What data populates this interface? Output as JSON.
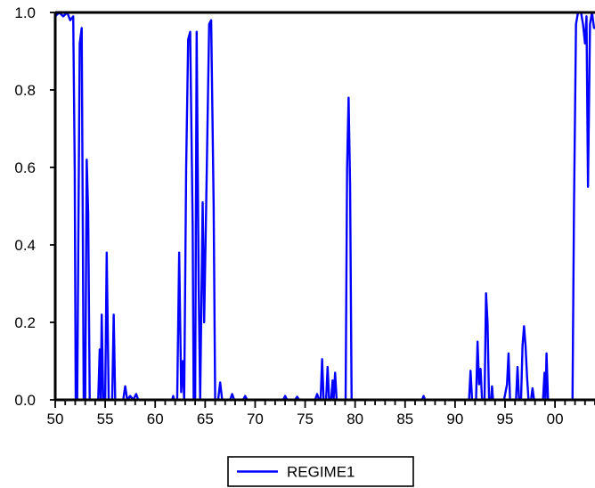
{
  "chart_data": {
    "type": "line",
    "title": "",
    "xlabel": "",
    "ylabel": "",
    "xlim": [
      1950,
      2004
    ],
    "ylim": [
      0,
      1
    ],
    "grid": false,
    "legend_position": "bottom-center",
    "x_ticks": [
      {
        "value": 1950,
        "label": "50"
      },
      {
        "value": 1955,
        "label": "55"
      },
      {
        "value": 1960,
        "label": "60"
      },
      {
        "value": 1965,
        "label": "65"
      },
      {
        "value": 1970,
        "label": "70"
      },
      {
        "value": 1975,
        "label": "75"
      },
      {
        "value": 1980,
        "label": "80"
      },
      {
        "value": 1985,
        "label": "85"
      },
      {
        "value": 1990,
        "label": "90"
      },
      {
        "value": 1995,
        "label": "95"
      },
      {
        "value": 2000,
        "label": "00"
      }
    ],
    "y_ticks": [
      {
        "value": 0.0,
        "label": "0.0"
      },
      {
        "value": 0.2,
        "label": "0.2"
      },
      {
        "value": 0.4,
        "label": "0.4"
      },
      {
        "value": 0.6,
        "label": "0.6"
      },
      {
        "value": 0.8,
        "label": "0.8"
      },
      {
        "value": 1.0,
        "label": "1.0"
      }
    ],
    "series": [
      {
        "name": "REGIME1",
        "color": "#0000ff",
        "points": [
          [
            1950.0,
            0.99
          ],
          [
            1950.4,
            1.0
          ],
          [
            1950.8,
            0.99
          ],
          [
            1951.2,
            1.0
          ],
          [
            1951.5,
            0.98
          ],
          [
            1951.8,
            0.99
          ],
          [
            1951.95,
            0.6
          ],
          [
            1952.05,
            0.0
          ],
          [
            1952.2,
            0.0
          ],
          [
            1952.45,
            0.92
          ],
          [
            1952.65,
            0.96
          ],
          [
            1952.85,
            0.0
          ],
          [
            1953.0,
            0.0
          ],
          [
            1953.15,
            0.62
          ],
          [
            1953.3,
            0.48
          ],
          [
            1953.45,
            0.0
          ],
          [
            1954.3,
            0.0
          ],
          [
            1954.45,
            0.13
          ],
          [
            1954.55,
            0.0
          ],
          [
            1954.65,
            0.22
          ],
          [
            1954.8,
            0.0
          ],
          [
            1955.0,
            0.0
          ],
          [
            1955.15,
            0.38
          ],
          [
            1955.35,
            0.0
          ],
          [
            1955.7,
            0.0
          ],
          [
            1955.85,
            0.22
          ],
          [
            1956.0,
            0.0
          ],
          [
            1956.8,
            0.0
          ],
          [
            1957.0,
            0.035
          ],
          [
            1957.2,
            0.0
          ],
          [
            1957.5,
            0.01
          ],
          [
            1957.8,
            0.0
          ],
          [
            1958.1,
            0.015
          ],
          [
            1958.3,
            0.0
          ],
          [
            1961.7,
            0.0
          ],
          [
            1961.8,
            0.01
          ],
          [
            1961.9,
            0.0
          ],
          [
            1962.2,
            0.0
          ],
          [
            1962.4,
            0.38
          ],
          [
            1962.6,
            0.02
          ],
          [
            1962.75,
            0.1
          ],
          [
            1962.9,
            0.0
          ],
          [
            1963.1,
            0.6
          ],
          [
            1963.3,
            0.93
          ],
          [
            1963.5,
            0.95
          ],
          [
            1963.6,
            0.75
          ],
          [
            1963.75,
            0.45
          ],
          [
            1963.85,
            0.0
          ],
          [
            1964.0,
            0.0
          ],
          [
            1964.15,
            0.95
          ],
          [
            1964.35,
            0.3
          ],
          [
            1964.5,
            0.0
          ],
          [
            1964.75,
            0.51
          ],
          [
            1964.9,
            0.2
          ],
          [
            1965.1,
            0.5
          ],
          [
            1965.4,
            0.97
          ],
          [
            1965.6,
            0.98
          ],
          [
            1965.85,
            0.5
          ],
          [
            1966.0,
            0.0
          ],
          [
            1966.3,
            0.0
          ],
          [
            1966.5,
            0.045
          ],
          [
            1966.7,
            0.0
          ],
          [
            1967.5,
            0.0
          ],
          [
            1967.7,
            0.015
          ],
          [
            1967.9,
            0.0
          ],
          [
            1968.8,
            0.0
          ],
          [
            1969.0,
            0.01
          ],
          [
            1969.2,
            0.0
          ],
          [
            1972.8,
            0.0
          ],
          [
            1973.0,
            0.01
          ],
          [
            1973.2,
            0.0
          ],
          [
            1974.0,
            0.0
          ],
          [
            1974.2,
            0.008
          ],
          [
            1974.4,
            0.0
          ],
          [
            1976.0,
            0.0
          ],
          [
            1976.2,
            0.015
          ],
          [
            1976.4,
            0.0
          ],
          [
            1976.55,
            0.0
          ],
          [
            1976.7,
            0.105
          ],
          [
            1976.85,
            0.0
          ],
          [
            1977.1,
            0.0
          ],
          [
            1977.25,
            0.085
          ],
          [
            1977.4,
            0.0
          ],
          [
            1977.6,
            0.0
          ],
          [
            1977.75,
            0.05
          ],
          [
            1977.85,
            0.0
          ],
          [
            1978.0,
            0.07
          ],
          [
            1978.15,
            0.0
          ],
          [
            1979.05,
            0.0
          ],
          [
            1979.2,
            0.6
          ],
          [
            1979.35,
            0.78
          ],
          [
            1979.5,
            0.55
          ],
          [
            1979.65,
            0.0
          ],
          [
            1986.7,
            0.0
          ],
          [
            1986.85,
            0.01
          ],
          [
            1987.0,
            0.0
          ],
          [
            1991.4,
            0.0
          ],
          [
            1991.55,
            0.075
          ],
          [
            1991.7,
            0.0
          ],
          [
            1992.1,
            0.0
          ],
          [
            1992.25,
            0.15
          ],
          [
            1992.4,
            0.04
          ],
          [
            1992.55,
            0.08
          ],
          [
            1992.7,
            0.0
          ],
          [
            1992.95,
            0.0
          ],
          [
            1993.1,
            0.275
          ],
          [
            1993.25,
            0.2
          ],
          [
            1993.4,
            0.0
          ],
          [
            1993.6,
            0.0
          ],
          [
            1993.7,
            0.035
          ],
          [
            1993.8,
            0.0
          ],
          [
            1994.9,
            0.0
          ],
          [
            1995.2,
            0.04
          ],
          [
            1995.35,
            0.12
          ],
          [
            1995.5,
            0.0
          ],
          [
            1996.1,
            0.0
          ],
          [
            1996.25,
            0.085
          ],
          [
            1996.4,
            0.0
          ],
          [
            1996.6,
            0.0
          ],
          [
            1996.75,
            0.14
          ],
          [
            1996.9,
            0.19
          ],
          [
            1997.05,
            0.14
          ],
          [
            1997.2,
            0.06
          ],
          [
            1997.35,
            0.0
          ],
          [
            1997.6,
            0.0
          ],
          [
            1997.75,
            0.03
          ],
          [
            1997.9,
            0.0
          ],
          [
            1998.8,
            0.0
          ],
          [
            1998.95,
            0.07
          ],
          [
            1999.05,
            0.0
          ],
          [
            1999.15,
            0.12
          ],
          [
            1999.3,
            0.0
          ],
          [
            2001.6,
            0.0
          ],
          [
            2001.75,
            0.0
          ],
          [
            2001.9,
            0.5
          ],
          [
            2002.1,
            0.97
          ],
          [
            2002.3,
            1.0
          ],
          [
            2002.6,
            1.0
          ],
          [
            2002.8,
            0.97
          ],
          [
            2003.0,
            0.92
          ],
          [
            2003.15,
            0.99
          ],
          [
            2003.3,
            0.55
          ],
          [
            2003.5,
            0.97
          ],
          [
            2003.7,
            1.0
          ],
          [
            2003.9,
            0.96
          ],
          [
            2004.0,
            0.96
          ]
        ]
      }
    ]
  }
}
